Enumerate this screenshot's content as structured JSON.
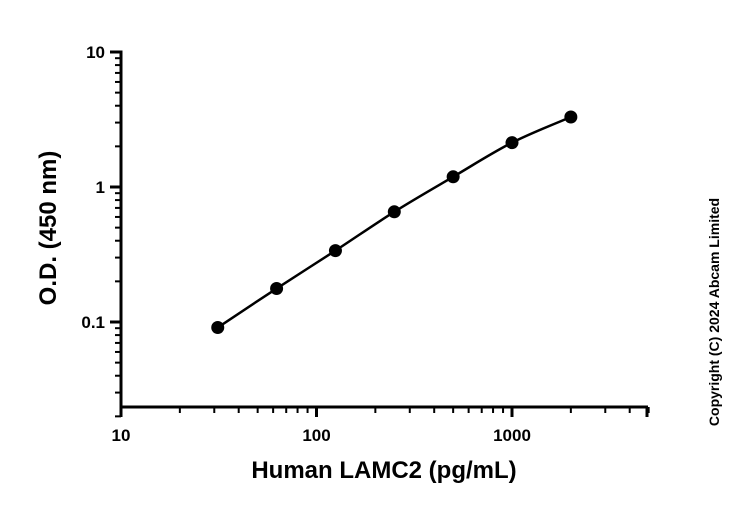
{
  "chart_data": {
    "type": "scatter",
    "xlabel": "Human LAMC2 (pg/mL)",
    "ylabel": "O.D. (450 nm)",
    "xscale": "log",
    "yscale": "log",
    "xlim": [
      10,
      5000
    ],
    "ylim": [
      0.02,
      10
    ],
    "x_ticks": [
      {
        "value": 10,
        "label": "10"
      },
      {
        "value": 100,
        "label": "100"
      },
      {
        "value": 1000,
        "label": "1000"
      }
    ],
    "y_ticks": [
      {
        "value": 0.1,
        "label": "0.1"
      },
      {
        "value": 1,
        "label": "1"
      },
      {
        "value": 10,
        "label": "10"
      }
    ],
    "grid": false,
    "legend": "none",
    "colors": {
      "points": "#000000",
      "curve": "#000000",
      "axes": "#000000"
    },
    "series": [
      {
        "x": [
          31.25,
          62.5,
          125,
          250,
          500,
          1000,
          2000
        ],
        "y": [
          0.091,
          0.177,
          0.338,
          0.655,
          1.19,
          2.13,
          3.3
        ]
      }
    ]
  },
  "annotations": {
    "copyright": "Copyright (C) 2024 Abcam Limited"
  }
}
